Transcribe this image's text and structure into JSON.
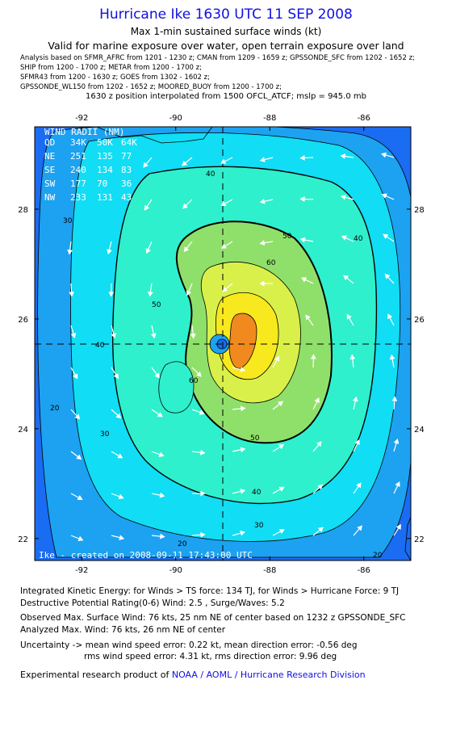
{
  "header": {
    "title": "Hurricane Ike 1630 UTC 11 SEP 2008",
    "subtitle": "Max 1-min sustained surface winds (kt)",
    "validity": "Valid for marine exposure over water, open terrain exposure over land",
    "sources": [
      "Analysis based on   SFMR_AFRC from 1201 - 1230 z;  CMAN from 1209 - 1659 z;  GPSSONDE_SFC from 1202 - 1652 z;",
      "SHIP from 1200 - 1700 z;  METAR from 1200 - 1700 z;",
      "SFMR43 from 1200 - 1630 z;  GOES from 1302 - 1602 z;",
      "GPSSONDE_WL150 from 1202 - 1652 z;  MOORED_BUOY from 1200 - 1700 z;"
    ],
    "position_note": "1630 z position interpolated from 1500 OFCL_ATCF; mslp = 945.0 mb"
  },
  "map": {
    "x_ticks": [
      "-92",
      "-90",
      "-88",
      "-86"
    ],
    "y_ticks": [
      "28",
      "26",
      "24",
      "22"
    ],
    "lon_range": [
      -93.0,
      -85.0
    ],
    "lat_range": [
      21.6,
      29.5
    ],
    "center": {
      "lon": -88.4,
      "lat": 25.6
    },
    "contour_levels": [
      "20",
      "30",
      "40",
      "50",
      "60"
    ],
    "wind_radii": {
      "title": "WIND RADII (NM)",
      "header": [
        "QD",
        "34K",
        "50K",
        "64K"
      ],
      "rows": [
        [
          "NE",
          "251",
          "135",
          "77"
        ],
        [
          "SE",
          "240",
          "134",
          "83"
        ],
        [
          "SW",
          "177",
          "70",
          "36"
        ],
        [
          "NW",
          "233",
          "131",
          "43"
        ]
      ]
    },
    "credit": "Ike  -  created on  2008-09-11  17:43:00  UTC",
    "colors": {
      "lt20": "#1a6cf2",
      "b20_30": "#1ca2f0",
      "b30_40": "#11ddf4",
      "b40_50": "#2ef0cd",
      "b50_60": "#8fe06a",
      "b60_70": "#d9f04a",
      "b70p": "#f8e81e",
      "max": "#f08a1e",
      "eye": "#1a6cf2"
    }
  },
  "footer": {
    "ike": "Integrated Kinetic Energy:  for Winds > TS force: 134 TJ,  for Winds > Hurricane Force: 9 TJ",
    "dpr": "Destructive Potential Rating(0-6)   Wind: 2.5 , Surge/Waves: 5.2",
    "observed_max": "Observed Max. Surface Wind: 76 kts, 25 nm NE of center based on 1232 z GPSSONDE_SFC",
    "analyzed_max": "Analyzed Max. Wind: 76 kts, 26 nm NE of center",
    "uncertainty_1": "Uncertainty -> mean wind speed error: 0.22 kt,   mean direction error:  -0.56 deg",
    "uncertainty_2": "rms wind speed error: 4.31 kt,   rms direction error: 9.96 deg",
    "product_prefix": "Experimental research product of ",
    "product_org": "NOAA / AOML / Hurricane Research Division"
  }
}
